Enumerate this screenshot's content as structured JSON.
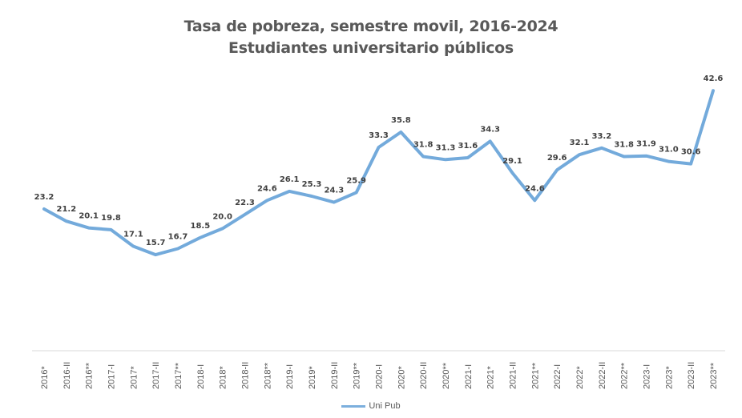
{
  "chart_data": {
    "type": "line",
    "title": "Tasa de pobreza, semestre movil, 2016-2024",
    "subtitle": "Estudiantes universitario públicos",
    "xlabel": "",
    "ylabel": "",
    "grid": false,
    "legend_position": "bottom",
    "ylim": [
      0,
      45
    ],
    "categories": [
      "2016*",
      "2016-II",
      "2016**",
      "2017-I",
      "2017*",
      "2017-II",
      "2017**",
      "2018-I",
      "2018*",
      "2018-II",
      "2018**",
      "2019-I",
      "2019*",
      "2019-II",
      "2019**",
      "2020-I",
      "2020*",
      "2020-II",
      "2020**",
      "2021-I",
      "2021*",
      "2021-II",
      "2021**",
      "2022-I",
      "2022*",
      "2022-II",
      "2022**",
      "2023-I",
      "2023*",
      "2023-II",
      "2023**"
    ],
    "series": [
      {
        "name": "Uni Pub",
        "color": "#5B9BD5",
        "values": [
          23.2,
          21.2,
          20.1,
          19.8,
          17.1,
          15.7,
          16.7,
          18.5,
          20.0,
          22.3,
          24.6,
          26.1,
          25.3,
          24.3,
          25.9,
          33.3,
          35.8,
          31.8,
          31.3,
          31.6,
          34.3,
          29.1,
          24.6,
          29.6,
          32.1,
          33.2,
          31.8,
          31.9,
          31.0,
          30.6,
          42.6
        ]
      }
    ]
  },
  "legend": {
    "label": "Uni Pub"
  }
}
